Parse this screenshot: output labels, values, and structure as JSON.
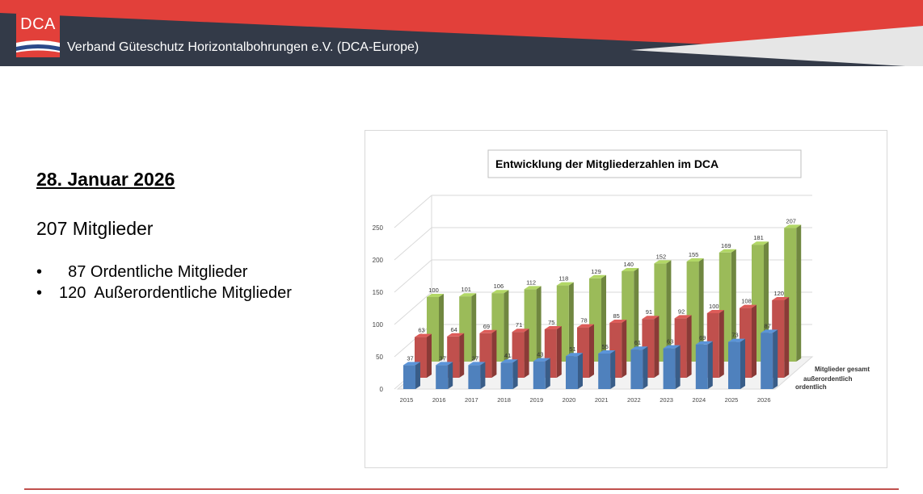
{
  "header": {
    "logo_text": "DCA",
    "org_name": "Verband Güteschutz Horizontalbohrungen e.V. (DCA-Europe)",
    "colors": {
      "dark": "#333a48",
      "red": "#e2403a",
      "light": "#e6e6e6"
    }
  },
  "content": {
    "date": "28. Januar 2026",
    "total": "207 Mitglieder",
    "bullets": [
      {
        "dot": "•",
        "text": "  87 Ordentliche Mitglieder"
      },
      {
        "dot": "•",
        "text": "120  Außerordentliche Mitglieder"
      }
    ]
  },
  "chart_data": {
    "type": "bar",
    "title": "Entwicklung der Mitgliederzahlen im DCA",
    "categories": [
      "2015",
      "2016",
      "2017",
      "2018",
      "2019",
      "2020",
      "2021",
      "2022",
      "2023",
      "2024",
      "2025",
      "2026"
    ],
    "series": [
      {
        "name": "Mitglieder gesamt",
        "color": "#9bbb59",
        "values": [
          100,
          101,
          106,
          112,
          118,
          129,
          140,
          152,
          155,
          169,
          181,
          207
        ]
      },
      {
        "name": "außerordentlich",
        "color": "#c0504d",
        "values": [
          63,
          64,
          69,
          71,
          75,
          78,
          85,
          91,
          92,
          100,
          108,
          120
        ]
      },
      {
        "name": "ordentlich",
        "color": "#4f81bd",
        "values": [
          37,
          37,
          37,
          41,
          43,
          51,
          55,
          61,
          63,
          69,
          73,
          87
        ]
      }
    ],
    "y_ticks": [
      "0",
      "50",
      "100",
      "150",
      "200",
      "250"
    ],
    "ylim": [
      0,
      250
    ],
    "legend_position": "right"
  }
}
